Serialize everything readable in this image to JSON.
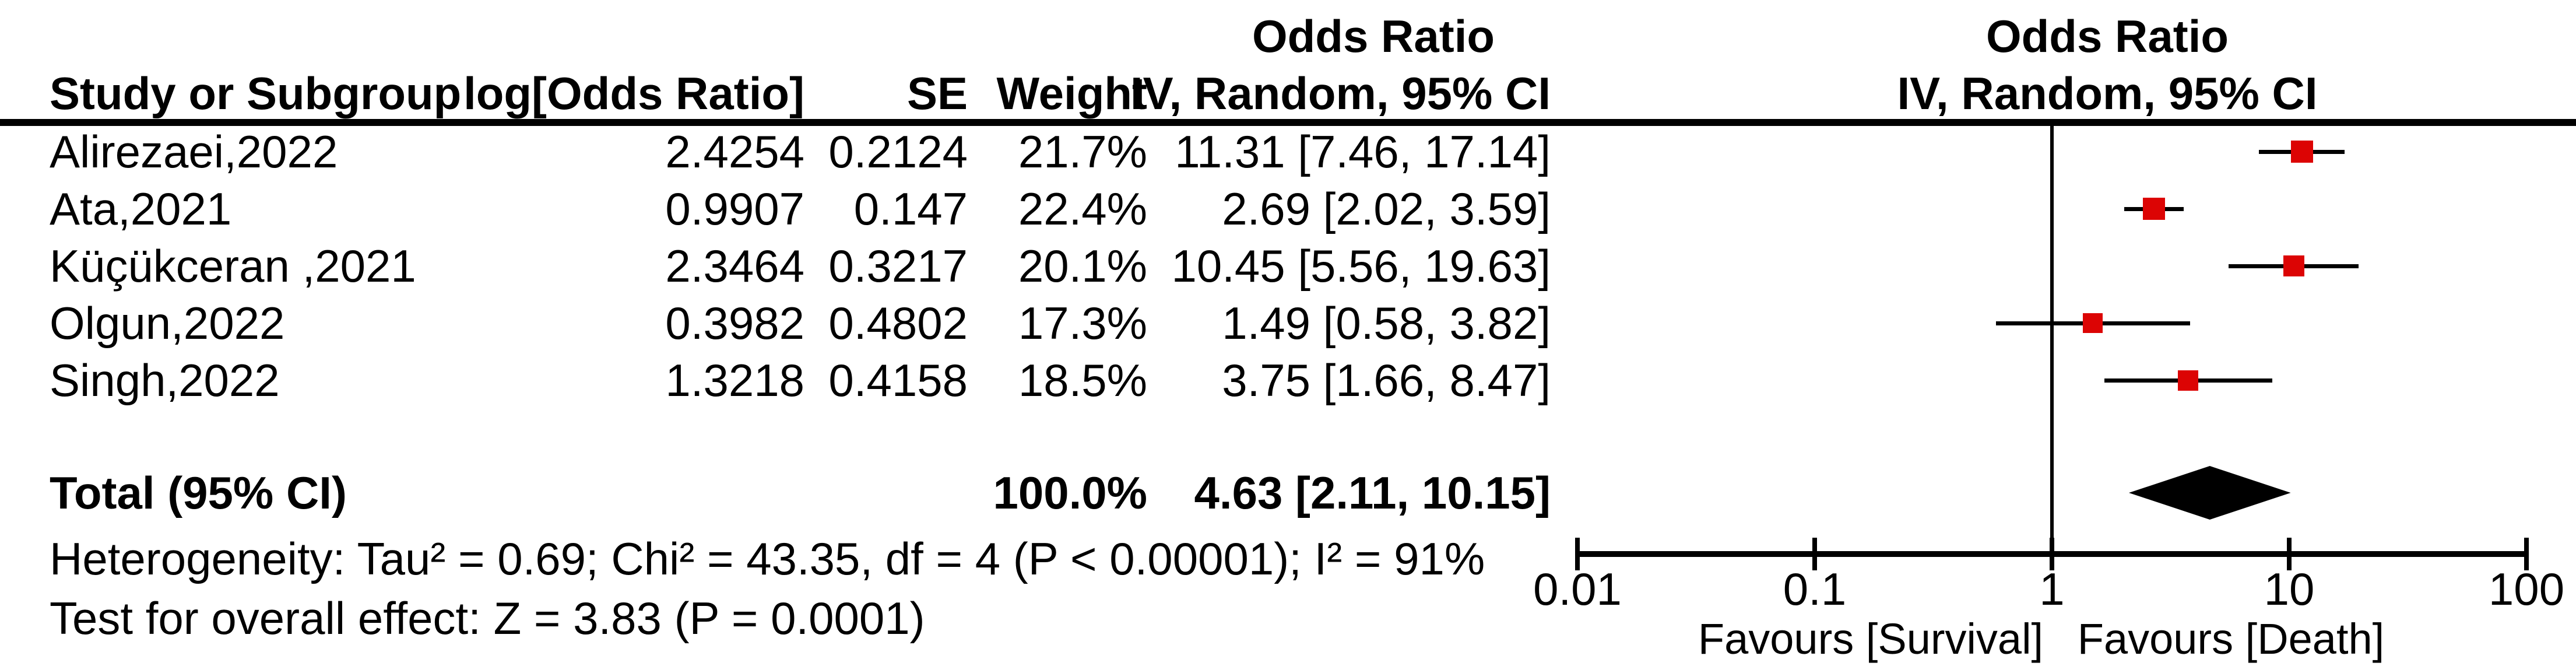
{
  "colors": {
    "marker_red": "#dc0404",
    "line_black": "#000000",
    "background": "#ffffff"
  },
  "table": {
    "col_headers": {
      "study": "Study or Subgroup",
      "log_or": "log[Odds Ratio]",
      "se": "SE",
      "weight": "Weight",
      "ci": "IV, Random, 95% CI"
    },
    "super_header_text_col": "Odds Ratio",
    "super_header_plot_col": "Odds Ratio",
    "plot_col_subheader": "IV, Random, 95% CI"
  },
  "chart_data": {
    "type": "forest",
    "effect_measure": "Odds Ratio",
    "model": "IV, Random, 95% CI",
    "studies": [
      {
        "name": "Alirezaei,2022",
        "log_or": "2.4254",
        "se": "0.2124",
        "weight": "21.7%",
        "weight_pct": 21.7,
        "ci_text": "11.31 [7.46, 17.14]",
        "or": 11.31,
        "ci_low": 7.46,
        "ci_high": 17.14
      },
      {
        "name": "Ata,2021",
        "log_or": "0.9907",
        "se": "0.147",
        "weight": "22.4%",
        "weight_pct": 22.4,
        "ci_text": "2.69 [2.02, 3.59]",
        "or": 2.69,
        "ci_low": 2.02,
        "ci_high": 3.59
      },
      {
        "name": "Küçükceran ,2021",
        "log_or": "2.3464",
        "se": "0.3217",
        "weight": "20.1%",
        "weight_pct": 20.1,
        "ci_text": "10.45 [5.56, 19.63]",
        "or": 10.45,
        "ci_low": 5.56,
        "ci_high": 19.63
      },
      {
        "name": "Olgun,2022",
        "log_or": "0.3982",
        "se": "0.4802",
        "weight": "17.3%",
        "weight_pct": 17.3,
        "ci_text": "1.49 [0.58, 3.82]",
        "or": 1.49,
        "ci_low": 0.58,
        "ci_high": 3.82
      },
      {
        "name": "Singh,2022",
        "log_or": "1.3218",
        "se": "0.4158",
        "weight": "18.5%",
        "weight_pct": 18.5,
        "ci_text": "3.75 [1.66, 8.47]",
        "or": 3.75,
        "ci_low": 1.66,
        "ci_high": 8.47
      }
    ],
    "total": {
      "label": "Total (95% CI)",
      "weight": "100.0%",
      "ci_text": "4.63 [2.11, 10.15]",
      "or": 4.63,
      "ci_low": 2.11,
      "ci_high": 10.15
    },
    "heterogeneity": "Heterogeneity: Tau² = 0.69; Chi² = 43.35, df = 4 (P < 0.00001); I² = 91%",
    "overall_effect": "Test for overall effect: Z = 3.83 (P = 0.0001)",
    "axis": {
      "scale": "log",
      "min": 0.01,
      "max": 100,
      "ticks": [
        0.01,
        0.1,
        1,
        10,
        100
      ],
      "labels": [
        "0.01",
        "0.1",
        "1",
        "10",
        "100"
      ],
      "favours_left": "Favours [Survival]",
      "favours_right": "Favours [Death]"
    }
  }
}
